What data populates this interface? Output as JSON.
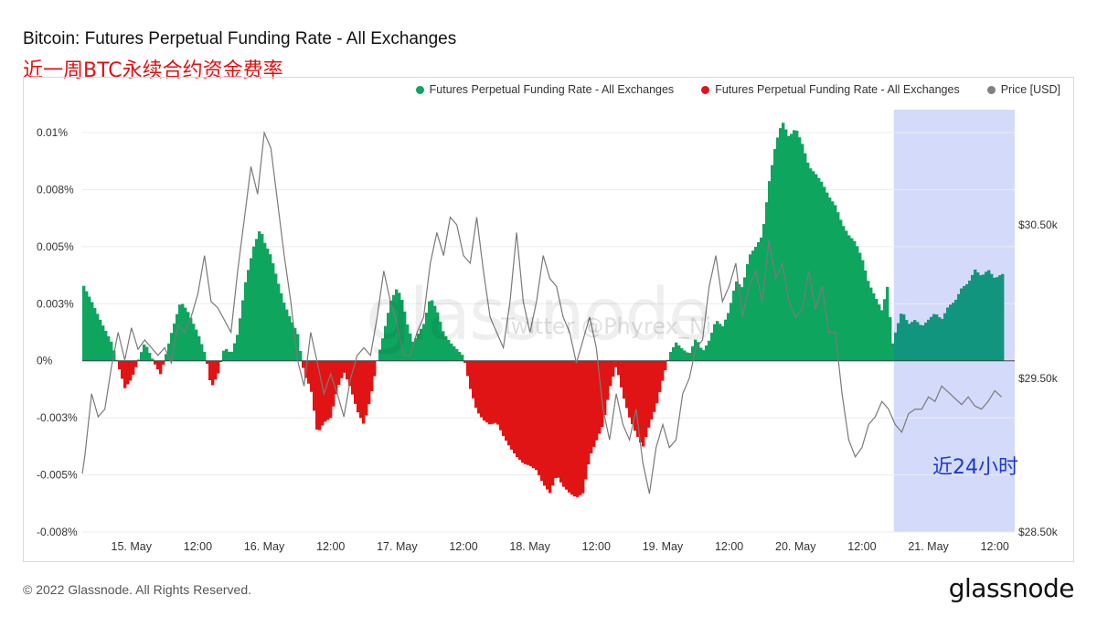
{
  "title": "Bitcoin: Futures Perpetual Funding Rate - All Exchanges",
  "subtitle": "近一周BTC永续合约资金费率",
  "legend": [
    {
      "label": "Futures Perpetual Funding Rate - All Exchanges",
      "color": "#0ea55f"
    },
    {
      "label": "Futures Perpetual Funding Rate - All Exchanges",
      "color": "#e01414"
    },
    {
      "label": "Price [USD]",
      "color": "#808080"
    }
  ],
  "watermark": "glassnode",
  "watermark_twitter": "Twitter @Phyrex_Ni",
  "highlight_label": "近24小时",
  "footer": "© 2022 Glassnode. All Rights Reserved.",
  "brand": "glassnode",
  "chart_data": {
    "type": "area",
    "x_ticks": [
      "15. May",
      "12:00",
      "16. May",
      "12:00",
      "17. May",
      "12:00",
      "18. May",
      "12:00",
      "19. May",
      "12:00",
      "20. May",
      "12:00",
      "21. May",
      "12:00"
    ],
    "x_range": [
      -0.37,
      6.65
    ],
    "y_left": {
      "ticks": [
        "0.01%",
        "0.008%",
        "0.005%",
        "0.003%",
        "0%",
        "-0.003%",
        "-0.005%",
        "-0.008%"
      ],
      "tick_values": [
        0.01,
        0.0075,
        0.005,
        0.0025,
        0,
        -0.0025,
        -0.005,
        -0.0075
      ],
      "range": [
        -0.0075,
        0.011
      ]
    },
    "y_right": {
      "ticks": [
        "$30.50k",
        "$29.50k",
        "$28.50k"
      ],
      "tick_values": [
        30500,
        29500,
        28500
      ],
      "range": [
        28500,
        31250
      ]
    },
    "funding_rate": [
      [
        -0.37,
        0.0034
      ],
      [
        -0.3,
        0.0026
      ],
      [
        -0.22,
        0.0016
      ],
      [
        -0.15,
        0.0008
      ],
      [
        -0.1,
        -0.0002
      ],
      [
        -0.05,
        -0.0012
      ],
      [
        0.0,
        -0.0008
      ],
      [
        0.05,
        0.0
      ],
      [
        0.1,
        0.0008
      ],
      [
        0.18,
        -0.0002
      ],
      [
        0.22,
        -0.0006
      ],
      [
        0.3,
        0.0012
      ],
      [
        0.37,
        0.0026
      ],
      [
        0.42,
        0.0022
      ],
      [
        0.5,
        0.0012
      ],
      [
        0.56,
        0.0002
      ],
      [
        0.6,
        -0.0012
      ],
      [
        0.65,
        -0.0006
      ],
      [
        0.7,
        0.0006
      ],
      [
        0.75,
        0.0003
      ],
      [
        0.8,
        0.0012
      ],
      [
        0.86,
        0.0035
      ],
      [
        0.92,
        0.005
      ],
      [
        0.97,
        0.0058
      ],
      [
        1.0,
        0.0052
      ],
      [
        1.05,
        0.0046
      ],
      [
        1.1,
        0.0035
      ],
      [
        1.15,
        0.0025
      ],
      [
        1.2,
        0.0018
      ],
      [
        1.25,
        0.0012
      ],
      [
        1.3,
        -0.0006
      ],
      [
        1.35,
        -0.0012
      ],
      [
        1.4,
        -0.0032
      ],
      [
        1.45,
        -0.0027
      ],
      [
        1.5,
        -0.0025
      ],
      [
        1.55,
        -0.0012
      ],
      [
        1.6,
        -0.0005
      ],
      [
        1.65,
        -0.0012
      ],
      [
        1.7,
        -0.0022
      ],
      [
        1.75,
        -0.0028
      ],
      [
        1.8,
        -0.0016
      ],
      [
        1.85,
        0.0
      ],
      [
        1.9,
        0.0012
      ],
      [
        1.95,
        0.0026
      ],
      [
        2.0,
        0.0032
      ],
      [
        2.04,
        0.0026
      ],
      [
        2.08,
        0.0015
      ],
      [
        2.12,
        0.0008
      ],
      [
        2.2,
        0.0016
      ],
      [
        2.25,
        0.0028
      ],
      [
        2.3,
        0.0022
      ],
      [
        2.35,
        0.0012
      ],
      [
        2.4,
        0.0008
      ],
      [
        2.45,
        0.0005
      ],
      [
        2.5,
        0.0002
      ],
      [
        2.55,
        -0.0012
      ],
      [
        2.6,
        -0.0022
      ],
      [
        2.65,
        -0.0026
      ],
      [
        2.7,
        -0.0028
      ],
      [
        2.75,
        -0.0027
      ],
      [
        2.8,
        -0.0033
      ],
      [
        2.85,
        -0.0038
      ],
      [
        2.9,
        -0.0042
      ],
      [
        2.95,
        -0.0045
      ],
      [
        3.0,
        -0.0046
      ],
      [
        3.05,
        -0.0048
      ],
      [
        3.1,
        -0.0054
      ],
      [
        3.15,
        -0.0058
      ],
      [
        3.2,
        -0.005
      ],
      [
        3.25,
        -0.0055
      ],
      [
        3.3,
        -0.0058
      ],
      [
        3.35,
        -0.006
      ],
      [
        3.4,
        -0.0058
      ],
      [
        3.45,
        -0.0042
      ],
      [
        3.5,
        -0.0035
      ],
      [
        3.55,
        -0.0028
      ],
      [
        3.6,
        -0.0012
      ],
      [
        3.65,
        -0.0002
      ],
      [
        3.7,
        -0.0015
      ],
      [
        3.75,
        -0.0025
      ],
      [
        3.8,
        -0.0032
      ],
      [
        3.85,
        -0.0038
      ],
      [
        3.9,
        -0.0028
      ],
      [
        3.95,
        -0.002
      ],
      [
        4.0,
        -0.0008
      ],
      [
        4.05,
        0.0003
      ],
      [
        4.1,
        0.0008
      ],
      [
        4.15,
        0.0005
      ],
      [
        4.2,
        0.0003
      ],
      [
        4.25,
        0.001
      ],
      [
        4.3,
        0.0004
      ],
      [
        4.35,
        0.0009
      ],
      [
        4.4,
        0.0018
      ],
      [
        4.45,
        0.0015
      ],
      [
        4.5,
        0.0022
      ],
      [
        4.55,
        0.0035
      ],
      [
        4.6,
        0.0032
      ],
      [
        4.65,
        0.0046
      ],
      [
        4.7,
        0.005
      ],
      [
        4.75,
        0.0055
      ],
      [
        4.8,
        0.0078
      ],
      [
        4.85,
        0.0095
      ],
      [
        4.9,
        0.0105
      ],
      [
        4.95,
        0.0098
      ],
      [
        5.0,
        0.0102
      ],
      [
        5.05,
        0.0095
      ],
      [
        5.1,
        0.0085
      ],
      [
        5.15,
        0.0082
      ],
      [
        5.2,
        0.0078
      ],
      [
        5.25,
        0.0072
      ],
      [
        5.3,
        0.0068
      ],
      [
        5.35,
        0.006
      ],
      [
        5.4,
        0.0055
      ],
      [
        5.45,
        0.0052
      ],
      [
        5.5,
        0.0045
      ],
      [
        5.55,
        0.0034
      ],
      [
        5.6,
        0.0028
      ],
      [
        5.65,
        0.0022
      ],
      [
        5.7,
        0.0035
      ],
      [
        5.72,
        0.0005
      ],
      [
        5.75,
        0.0012
      ],
      [
        5.8,
        0.0022
      ],
      [
        5.85,
        0.0016
      ],
      [
        5.9,
        0.0018
      ],
      [
        5.95,
        0.0015
      ],
      [
        6.0,
        0.0018
      ],
      [
        6.05,
        0.0021
      ],
      [
        6.1,
        0.0018
      ],
      [
        6.15,
        0.0024
      ],
      [
        6.2,
        0.0026
      ],
      [
        6.25,
        0.0032
      ],
      [
        6.3,
        0.0034
      ],
      [
        6.35,
        0.004
      ],
      [
        6.4,
        0.0037
      ],
      [
        6.45,
        0.004
      ],
      [
        6.5,
        0.0036
      ],
      [
        6.55,
        0.0038
      ]
    ],
    "price": [
      [
        -0.37,
        28880
      ],
      [
        -0.35,
        29000
      ],
      [
        -0.3,
        29400
      ],
      [
        -0.25,
        29250
      ],
      [
        -0.2,
        29300
      ],
      [
        -0.15,
        29580
      ],
      [
        -0.1,
        29800
      ],
      [
        -0.05,
        29620
      ],
      [
        0.0,
        29830
      ],
      [
        0.05,
        29690
      ],
      [
        0.1,
        29750
      ],
      [
        0.15,
        29700
      ],
      [
        0.2,
        29650
      ],
      [
        0.25,
        29700
      ],
      [
        0.3,
        29600
      ],
      [
        0.35,
        29850
      ],
      [
        0.4,
        29800
      ],
      [
        0.45,
        29900
      ],
      [
        0.5,
        30050
      ],
      [
        0.55,
        30300
      ],
      [
        0.6,
        30000
      ],
      [
        0.65,
        29960
      ],
      [
        0.7,
        29880
      ],
      [
        0.75,
        29800
      ],
      [
        0.8,
        30200
      ],
      [
        0.85,
        30540
      ],
      [
        0.9,
        30880
      ],
      [
        0.95,
        30700
      ],
      [
        1.0,
        31100
      ],
      [
        1.05,
        31000
      ],
      [
        1.1,
        30650
      ],
      [
        1.15,
        30300
      ],
      [
        1.2,
        30000
      ],
      [
        1.25,
        29620
      ],
      [
        1.3,
        29450
      ],
      [
        1.35,
        29800
      ],
      [
        1.4,
        29600
      ],
      [
        1.45,
        29400
      ],
      [
        1.5,
        29530
      ],
      [
        1.55,
        29400
      ],
      [
        1.6,
        29250
      ],
      [
        1.65,
        29500
      ],
      [
        1.7,
        29650
      ],
      [
        1.75,
        29700
      ],
      [
        1.8,
        29650
      ],
      [
        1.85,
        29900
      ],
      [
        1.9,
        30200
      ],
      [
        1.95,
        30000
      ],
      [
        2.0,
        29850
      ],
      [
        2.05,
        29650
      ],
      [
        2.1,
        29650
      ],
      [
        2.15,
        29800
      ],
      [
        2.2,
        29900
      ],
      [
        2.25,
        30250
      ],
      [
        2.3,
        30450
      ],
      [
        2.35,
        30300
      ],
      [
        2.4,
        30550
      ],
      [
        2.45,
        30500
      ],
      [
        2.5,
        30300
      ],
      [
        2.55,
        30250
      ],
      [
        2.6,
        30550
      ],
      [
        2.65,
        30200
      ],
      [
        2.7,
        29900
      ],
      [
        2.75,
        29800
      ],
      [
        2.8,
        29700
      ],
      [
        2.85,
        30000
      ],
      [
        2.9,
        30450
      ],
      [
        2.95,
        30000
      ],
      [
        3.0,
        29800
      ],
      [
        3.05,
        30000
      ],
      [
        3.1,
        30300
      ],
      [
        3.15,
        30150
      ],
      [
        3.2,
        30100
      ],
      [
        3.25,
        29900
      ],
      [
        3.3,
        29800
      ],
      [
        3.35,
        29600
      ],
      [
        3.4,
        29750
      ],
      [
        3.45,
        29900
      ],
      [
        3.5,
        29700
      ],
      [
        3.55,
        29300
      ],
      [
        3.6,
        29100
      ],
      [
        3.65,
        29400
      ],
      [
        3.7,
        29200
      ],
      [
        3.75,
        29100
      ],
      [
        3.8,
        29300
      ],
      [
        3.85,
        28950
      ],
      [
        3.9,
        28750
      ],
      [
        3.95,
        29050
      ],
      [
        4.0,
        29200
      ],
      [
        4.05,
        29050
      ],
      [
        4.1,
        29100
      ],
      [
        4.15,
        29400
      ],
      [
        4.2,
        29500
      ],
      [
        4.25,
        29700
      ],
      [
        4.3,
        29750
      ],
      [
        4.35,
        30100
      ],
      [
        4.4,
        30300
      ],
      [
        4.45,
        30000
      ],
      [
        4.5,
        30100
      ],
      [
        4.55,
        30250
      ],
      [
        4.6,
        29900
      ],
      [
        4.65,
        30100
      ],
      [
        4.7,
        30200
      ],
      [
        4.75,
        30000
      ],
      [
        4.8,
        30400
      ],
      [
        4.85,
        30150
      ],
      [
        4.9,
        30250
      ],
      [
        4.95,
        30000
      ],
      [
        5.0,
        29900
      ],
      [
        5.05,
        29950
      ],
      [
        5.1,
        30200
      ],
      [
        5.15,
        29950
      ],
      [
        5.2,
        30100
      ],
      [
        5.25,
        29800
      ],
      [
        5.3,
        29800
      ],
      [
        5.35,
        29400
      ],
      [
        5.4,
        29100
      ],
      [
        5.45,
        28990
      ],
      [
        5.5,
        29050
      ],
      [
        5.55,
        29200
      ],
      [
        5.6,
        29250
      ],
      [
        5.65,
        29350
      ],
      [
        5.7,
        29300
      ],
      [
        5.75,
        29200
      ],
      [
        5.8,
        29150
      ],
      [
        5.85,
        29270
      ],
      [
        5.9,
        29300
      ],
      [
        5.95,
        29300
      ],
      [
        6.0,
        29380
      ],
      [
        6.05,
        29350
      ],
      [
        6.1,
        29450
      ],
      [
        6.15,
        29410
      ],
      [
        6.2,
        29370
      ],
      [
        6.25,
        29330
      ],
      [
        6.3,
        29380
      ],
      [
        6.35,
        29320
      ],
      [
        6.4,
        29300
      ],
      [
        6.45,
        29350
      ],
      [
        6.5,
        29420
      ],
      [
        6.55,
        29380
      ]
    ],
    "highlight_range": [
      5.74,
      6.65
    ]
  }
}
